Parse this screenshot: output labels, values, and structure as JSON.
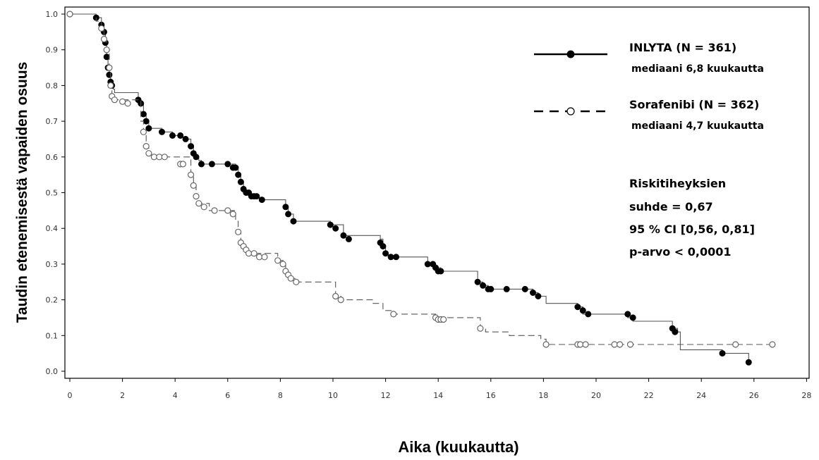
{
  "chart_data": {
    "type": "line",
    "title": "",
    "xlabel": "Aika (kuukautta)",
    "ylabel": "Taudin etenemisestä vapaiden osuus",
    "xlim": [
      0,
      28
    ],
    "ylim": [
      0.0,
      1.0
    ],
    "xticks": [
      0,
      2,
      4,
      6,
      8,
      10,
      12,
      14,
      16,
      18,
      20,
      22,
      24,
      26,
      28
    ],
    "yticks": [
      0.0,
      0.1,
      0.2,
      0.3,
      0.4,
      0.5,
      0.6,
      0.7,
      0.8,
      0.9,
      1.0
    ],
    "ytick_labels": [
      "0.0",
      "0.1",
      "0.2",
      "0.3",
      "0.4",
      "0.5",
      "0.6",
      "0.7",
      "0.8",
      "0.9",
      "1.0"
    ],
    "grid": false,
    "legend_position": "top-right",
    "series": [
      {
        "name": "INLYTA (N = 361)",
        "subtitle": "mediaani 6,8 kuukautta",
        "line_style": "solid",
        "marker": "filled-circle",
        "color": "#000000",
        "step_x": [
          0.0,
          1.0,
          1.2,
          1.3,
          1.35,
          1.4,
          1.45,
          1.5,
          1.55,
          1.6,
          1.65,
          1.7,
          2.6,
          2.7,
          2.8,
          2.9,
          3.0,
          3.5,
          3.9,
          4.3,
          4.6,
          4.7,
          4.8,
          4.9,
          5.0,
          6.3,
          6.4,
          6.5,
          6.6,
          6.7,
          6.9,
          7.2,
          8.2,
          8.3,
          8.5,
          9.9,
          10.4,
          11.8,
          11.9,
          12.0,
          12.1,
          13.6,
          13.9,
          14.1,
          15.5,
          15.7,
          15.9,
          17.6,
          17.8,
          18.1,
          19.3,
          19.5,
          21.2,
          21.4,
          22.9,
          23.1,
          23.2,
          24.8,
          25.8
        ],
        "step_y": [
          1.0,
          0.99,
          0.97,
          0.95,
          0.92,
          0.88,
          0.85,
          0.83,
          0.81,
          0.8,
          0.79,
          0.78,
          0.76,
          0.75,
          0.72,
          0.7,
          0.68,
          0.67,
          0.66,
          0.65,
          0.63,
          0.61,
          0.6,
          0.59,
          0.58,
          0.57,
          0.55,
          0.53,
          0.51,
          0.5,
          0.49,
          0.48,
          0.46,
          0.44,
          0.42,
          0.41,
          0.38,
          0.37,
          0.35,
          0.33,
          0.32,
          0.3,
          0.29,
          0.28,
          0.25,
          0.24,
          0.23,
          0.22,
          0.21,
          0.19,
          0.18,
          0.16,
          0.15,
          0.14,
          0.12,
          0.11,
          0.06,
          0.05,
          0.025
        ],
        "censor_x": [
          0.0,
          1.0,
          1.2,
          1.3,
          1.35,
          1.4,
          1.45,
          1.5,
          1.55,
          1.6,
          2.6,
          2.7,
          2.8,
          2.9,
          3.0,
          3.5,
          3.9,
          4.2,
          4.4,
          4.6,
          4.7,
          4.8,
          5.0,
          5.4,
          6.0,
          6.2,
          6.3,
          6.4,
          6.5,
          6.6,
          6.7,
          6.8,
          6.9,
          7.0,
          7.1,
          7.3,
          8.2,
          8.3,
          8.5,
          9.9,
          10.1,
          10.4,
          10.6,
          11.8,
          11.9,
          12.0,
          12.2,
          12.4,
          13.6,
          13.8,
          13.9,
          14.0,
          14.1,
          15.5,
          15.7,
          15.9,
          16.0,
          16.6,
          17.3,
          17.6,
          17.8,
          19.3,
          19.5,
          19.7,
          21.2,
          21.4,
          22.9,
          23.0,
          24.8,
          25.8
        ],
        "censor_y": [
          1.0,
          0.99,
          0.97,
          0.95,
          0.92,
          0.88,
          0.85,
          0.83,
          0.81,
          0.8,
          0.76,
          0.75,
          0.72,
          0.7,
          0.68,
          0.67,
          0.66,
          0.66,
          0.65,
          0.63,
          0.61,
          0.6,
          0.58,
          0.58,
          0.58,
          0.57,
          0.57,
          0.55,
          0.53,
          0.51,
          0.5,
          0.5,
          0.49,
          0.49,
          0.49,
          0.48,
          0.46,
          0.44,
          0.42,
          0.41,
          0.4,
          0.38,
          0.37,
          0.36,
          0.35,
          0.33,
          0.32,
          0.32,
          0.3,
          0.3,
          0.29,
          0.28,
          0.28,
          0.25,
          0.24,
          0.23,
          0.23,
          0.23,
          0.23,
          0.22,
          0.21,
          0.18,
          0.17,
          0.16,
          0.16,
          0.15,
          0.12,
          0.11,
          0.05,
          0.025
        ]
      },
      {
        "name": "Sorafenibi (N = 362)",
        "subtitle": "mediaani 4,7 kuukautta",
        "line_style": "dashed",
        "marker": "open-circle",
        "color": "#000000",
        "step_x": [
          0.0,
          1.0,
          1.2,
          1.3,
          1.4,
          1.5,
          1.55,
          1.6,
          1.7,
          2.7,
          2.8,
          2.9,
          3.0,
          3.1,
          4.6,
          4.7,
          4.8,
          4.9,
          5.3,
          6.3,
          6.4,
          6.5,
          6.6,
          6.7,
          6.8,
          7.9,
          8.1,
          8.2,
          8.3,
          8.4,
          8.6,
          10.1,
          10.3,
          11.5,
          11.9,
          12.3,
          13.9,
          15.6,
          15.8,
          16.7,
          17.9,
          18.1
        ],
        "step_y": [
          1.0,
          0.98,
          0.96,
          0.93,
          0.9,
          0.85,
          0.8,
          0.77,
          0.76,
          0.7,
          0.67,
          0.63,
          0.61,
          0.6,
          0.55,
          0.52,
          0.49,
          0.47,
          0.45,
          0.42,
          0.39,
          0.36,
          0.35,
          0.34,
          0.33,
          0.31,
          0.3,
          0.28,
          0.27,
          0.26,
          0.25,
          0.21,
          0.2,
          0.19,
          0.17,
          0.16,
          0.15,
          0.12,
          0.11,
          0.1,
          0.09,
          0.075
        ],
        "censor_x": [
          0.0,
          1.2,
          1.3,
          1.4,
          1.5,
          1.55,
          1.6,
          1.7,
          2.0,
          2.2,
          2.8,
          2.9,
          3.0,
          3.2,
          3.4,
          3.6,
          4.2,
          4.3,
          4.6,
          4.7,
          4.8,
          4.9,
          5.1,
          5.5,
          6.0,
          6.2,
          6.4,
          6.5,
          6.6,
          6.7,
          6.8,
          7.0,
          7.2,
          7.4,
          7.9,
          8.1,
          8.2,
          8.3,
          8.4,
          8.6,
          10.1,
          10.3,
          12.3,
          13.9,
          14.0,
          14.1,
          14.2,
          15.6,
          18.1,
          19.3,
          19.4,
          19.6,
          20.7,
          20.9,
          21.3,
          25.3,
          26.7
        ],
        "censor_y": [
          1.0,
          0.96,
          0.93,
          0.9,
          0.85,
          0.8,
          0.77,
          0.76,
          0.755,
          0.75,
          0.67,
          0.63,
          0.61,
          0.6,
          0.6,
          0.6,
          0.58,
          0.58,
          0.55,
          0.52,
          0.49,
          0.47,
          0.46,
          0.45,
          0.45,
          0.44,
          0.39,
          0.36,
          0.35,
          0.34,
          0.33,
          0.33,
          0.32,
          0.32,
          0.31,
          0.3,
          0.28,
          0.27,
          0.26,
          0.25,
          0.21,
          0.2,
          0.16,
          0.15,
          0.145,
          0.145,
          0.145,
          0.12,
          0.075,
          0.075,
          0.075,
          0.075,
          0.075,
          0.075,
          0.075,
          0.075,
          0.075
        ]
      }
    ],
    "annotation_lines": [
      "Riskitiheyksien",
      "suhde = 0,67",
      "95 % CI [0,56, 0,81]",
      "p-arvo < 0,0001"
    ]
  }
}
